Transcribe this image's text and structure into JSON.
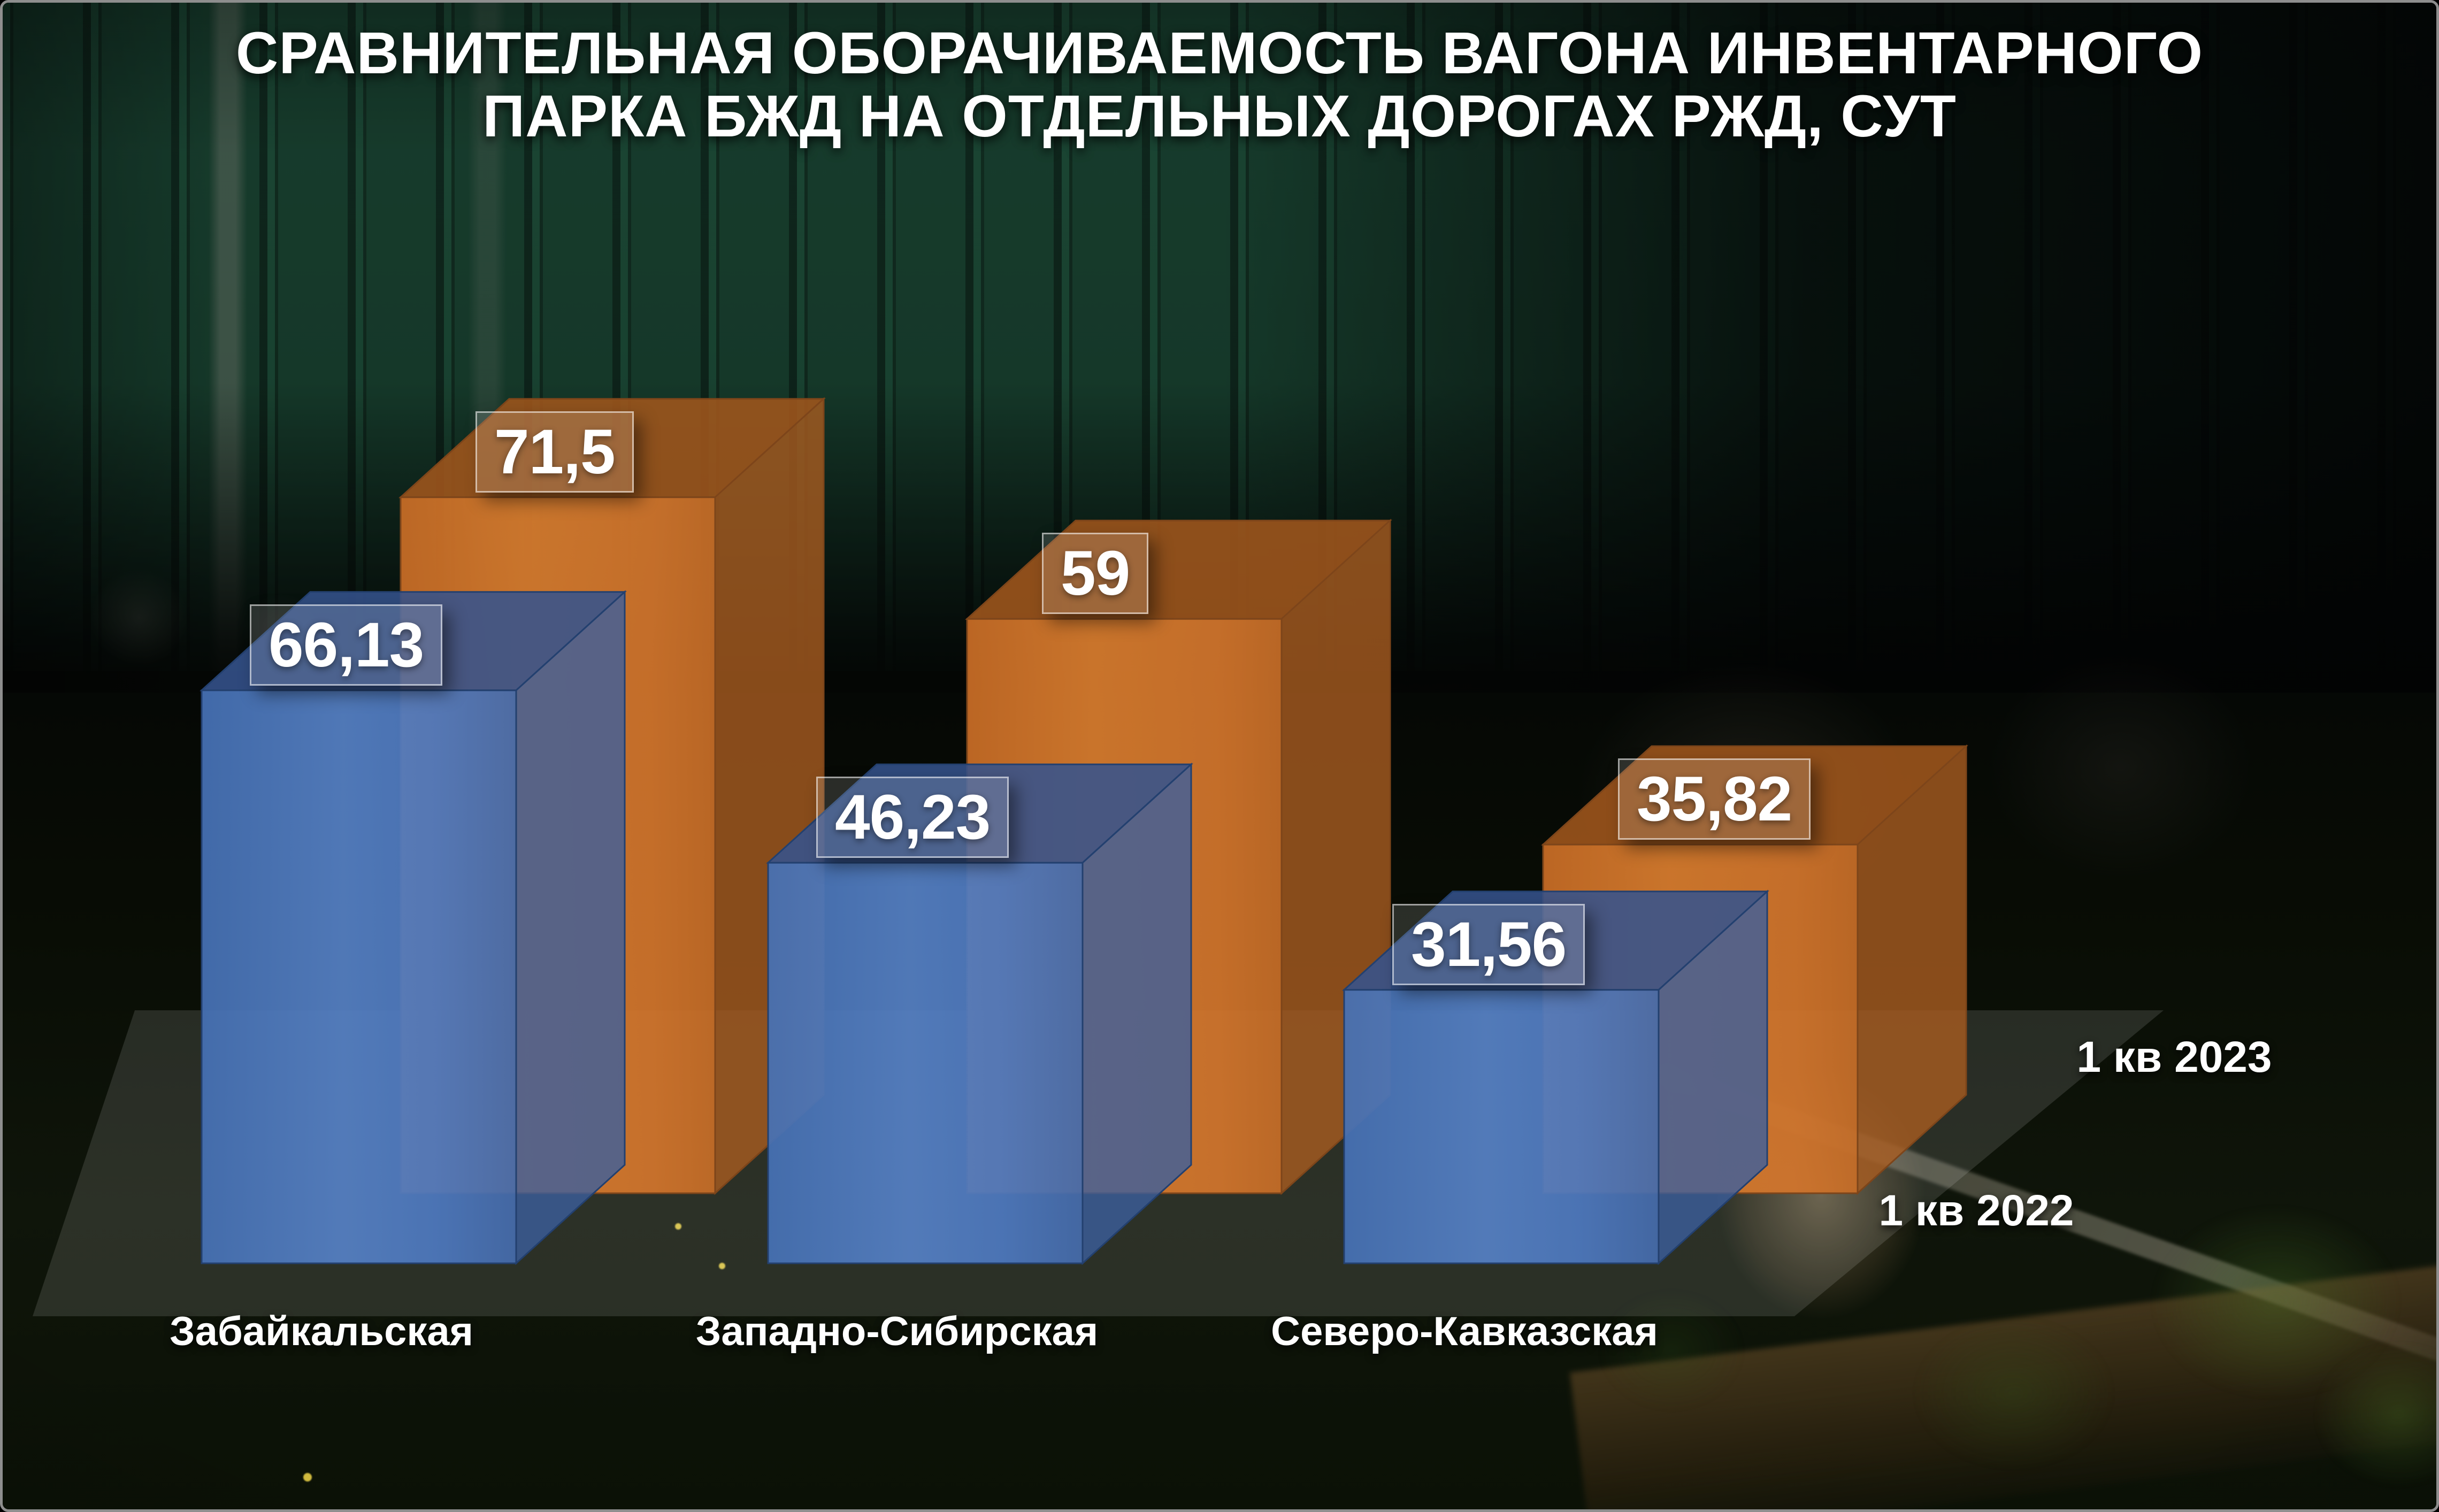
{
  "title": {
    "line1": "СРАВНИТЕЛЬНАЯ ОБОРАЧИВАЕМОСТЬ ВАГОНА ИНВЕНТАРНОГО",
    "line2": "ПАРКА БЖД НА ОТДЕЛЬНЫХ ДОРОГАХ РЖД, СУТ"
  },
  "chart_data": {
    "type": "bar",
    "title": "СРАВНИТЕЛЬНАЯ ОБОРАЧИВАЕМОСТЬ ВАГОНА ИНВЕНТАРНОГО ПАРКА БЖД НА ОТДЕЛЬНЫХ ДОРОГАХ РЖД, СУТ",
    "categories": [
      "Забайкальская",
      "Западно-Сибирская",
      "Северо-Кавказская"
    ],
    "series": [
      {
        "name": "1 кв 2022",
        "color": "#4d78be",
        "values": [
          66.13,
          46.23,
          31.56
        ],
        "display_labels": [
          "66,13",
          "46,23",
          "31,56"
        ]
      },
      {
        "name": "1 кв 2023",
        "color": "#d4762c",
        "values": [
          71.5,
          59,
          35.82
        ],
        "display_labels": [
          "71,5",
          "59",
          "35,82"
        ]
      }
    ],
    "xlabel": "",
    "ylabel": "сут",
    "grid": false,
    "legend_position": "right",
    "style": "3d-perspective-boxes, value labels in translucent boxes above each bar"
  },
  "legend": {
    "back_row_label": "1 кв 2023",
    "front_row_label": "1 кв 2022"
  },
  "colors": {
    "bar_2022_front": "#4d78be",
    "bar_2022_top": "#36538d",
    "bar_2022_side": "#3c5f9e",
    "bar_2022_edge": "#23406f",
    "bar_2023_front": "#d4762c",
    "bar_2023_top": "#a1561d",
    "bar_2023_side": "#a95d20",
    "bar_2023_edge": "#7d451a",
    "text": "#ffffff",
    "floor": "rgba(255,255,255,0.12)",
    "background": "#060606"
  }
}
